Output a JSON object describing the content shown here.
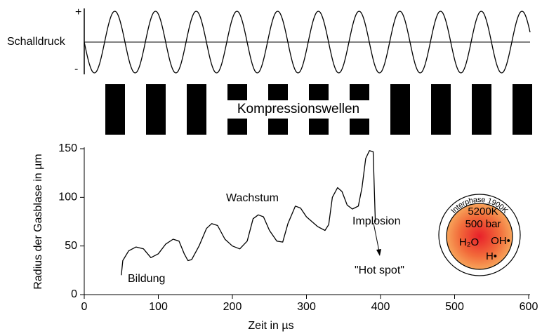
{
  "chart_data": {
    "type": "line",
    "xlabel": "Zeit in µs",
    "ylabel": "Radius der Gasblase in µm",
    "x": [
      50,
      52,
      60,
      70,
      80,
      90,
      100,
      110,
      120,
      128,
      135,
      140,
      145,
      155,
      165,
      172,
      180,
      190,
      200,
      210,
      220,
      228,
      235,
      242,
      250,
      260,
      268,
      275,
      285,
      292,
      300,
      315,
      325,
      330,
      335,
      342,
      348,
      355,
      362,
      370,
      375,
      380,
      385,
      390,
      393
    ],
    "values": [
      20,
      35,
      45,
      49,
      47,
      38,
      42,
      52,
      57,
      55,
      42,
      35,
      36,
      50,
      68,
      73,
      71,
      57,
      50,
      47,
      55,
      78,
      82,
      80,
      66,
      55,
      54,
      73,
      91,
      89,
      80,
      70,
      66,
      72,
      100,
      110,
      106,
      92,
      88,
      91,
      110,
      140,
      148,
      147,
      75
    ],
    "color": "#000000",
    "xlim": [
      0,
      600
    ],
    "ylim": [
      0,
      150
    ],
    "xticks": [
      0,
      100,
      200,
      300,
      400,
      500,
      600
    ],
    "yticks": [
      0,
      50,
      100,
      150
    ],
    "annotations": [
      "Bildung",
      "Wachstum",
      "Implosion",
      "\"Hot spot\""
    ]
  },
  "diagram": {
    "pressure_label": "Schalldruck",
    "plus": "+",
    "minus": "-",
    "waves_label": "Kompressionswellen",
    "hotspot": {
      "ring": "Interphase 1900K",
      "temperature": "5200K",
      "pressure": "500 bar",
      "species": [
        "H₂O",
        "OH•",
        "H•"
      ]
    }
  }
}
